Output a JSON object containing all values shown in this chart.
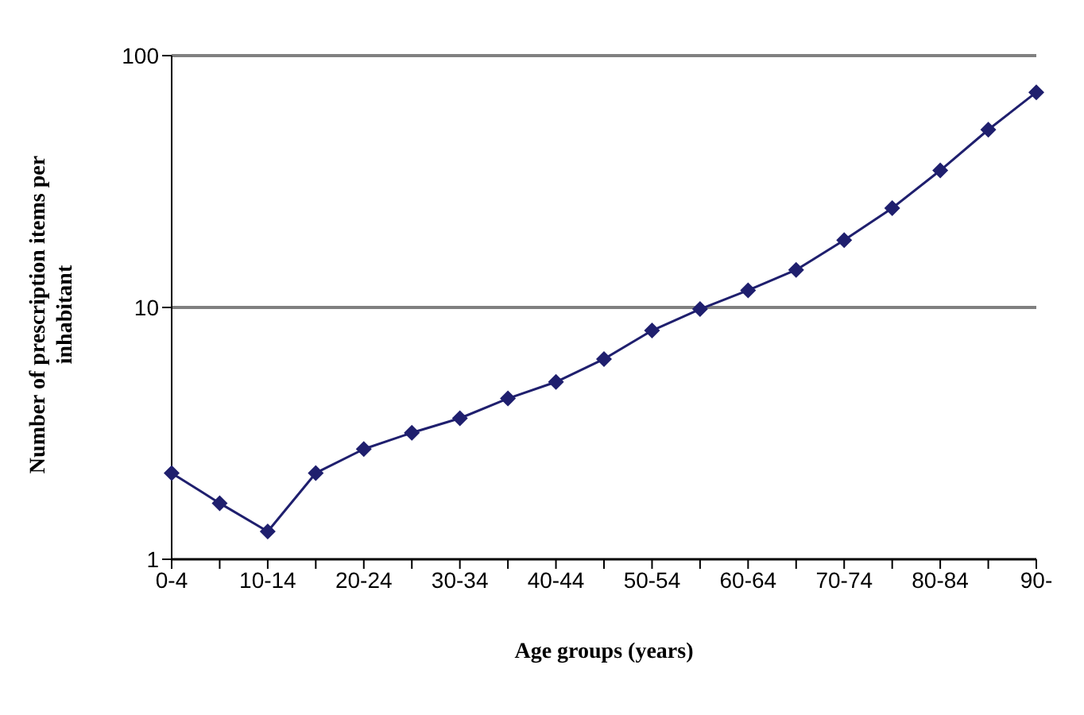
{
  "chart_data": {
    "type": "line",
    "xlabel": "Age groups (years)",
    "ylabel": "Number of prescription items per inhabitant",
    "categories": [
      "0-4",
      null,
      "10-14",
      null,
      "20-24",
      null,
      "30-34",
      null,
      "40-44",
      null,
      "50-54",
      null,
      "60-64",
      null,
      "70-74",
      null,
      "80-84",
      null,
      "90-"
    ],
    "series": [
      {
        "color": "#1f1f6e",
        "values": [
          2.2,
          1.67,
          1.29,
          2.2,
          2.74,
          3.18,
          3.63,
          4.35,
          5.06,
          6.24,
          8.1,
          9.85,
          11.7,
          14.1,
          18.5,
          24.8,
          35,
          50.8,
          71.5
        ]
      }
    ],
    "log": "y",
    "ylim": [
      1,
      100
    ],
    "yticks": [
      1,
      10,
      100
    ],
    "grid": "y",
    "marker": "diamond",
    "line_style": "solid",
    "legend": false
  }
}
